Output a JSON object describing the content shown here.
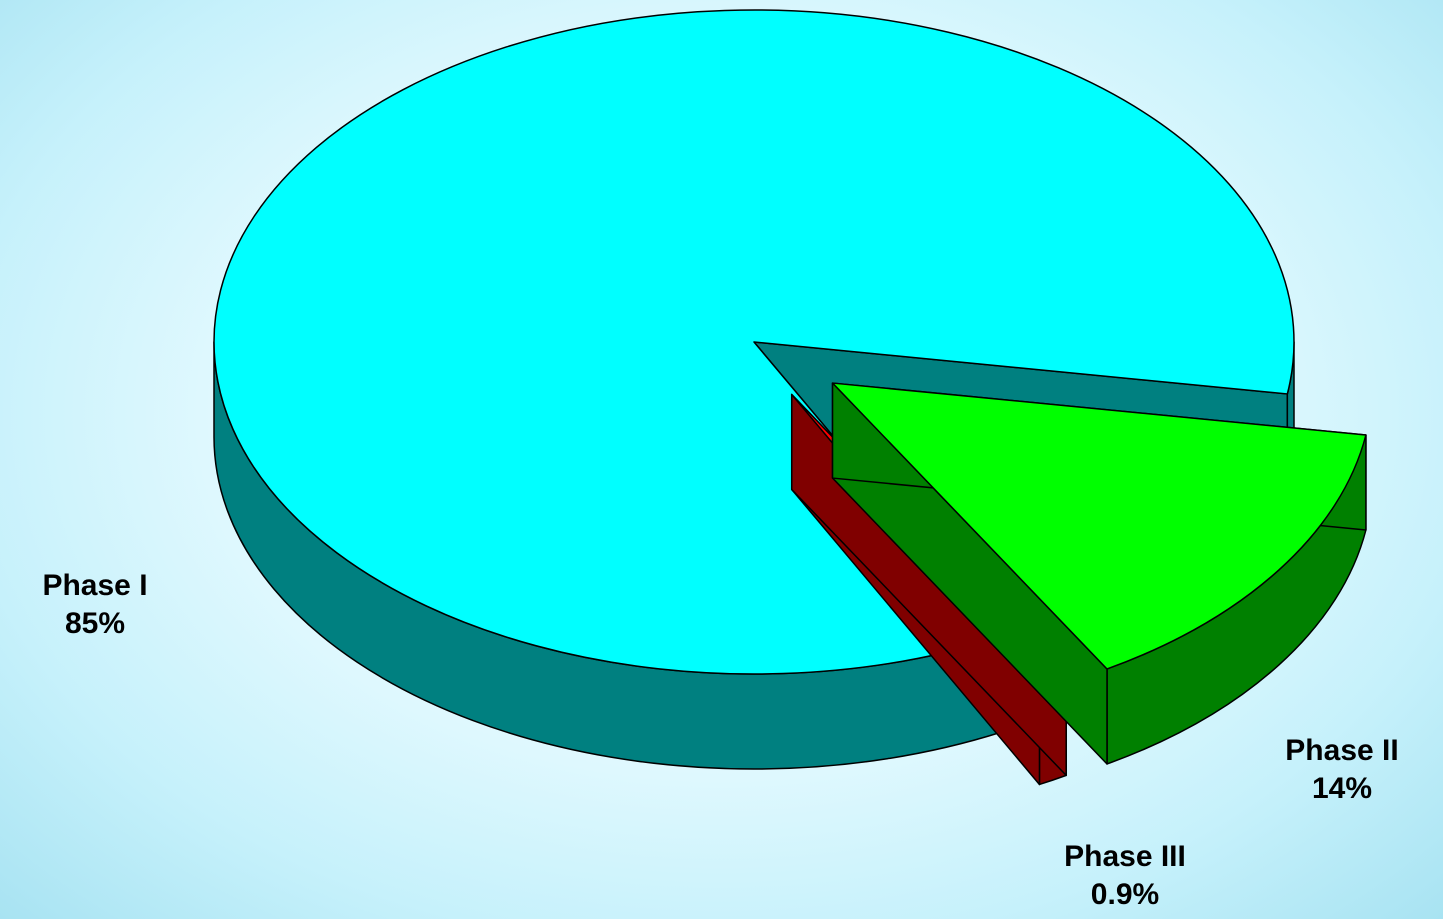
{
  "chart_data": {
    "type": "pie",
    "style": "3d-exploded",
    "legend": "none",
    "slices": [
      {
        "name": "Phase I",
        "value": 85,
        "label": "85%",
        "color": "#00FFFF",
        "side_color": "#008080"
      },
      {
        "name": "Phase II",
        "value": 14,
        "label": "14%",
        "color": "#00FF00",
        "side_color": "#008000"
      },
      {
        "name": "Phase III",
        "value": 0.9,
        "label": "0.9%",
        "color": "#FF0000",
        "side_color": "#800000"
      }
    ]
  }
}
